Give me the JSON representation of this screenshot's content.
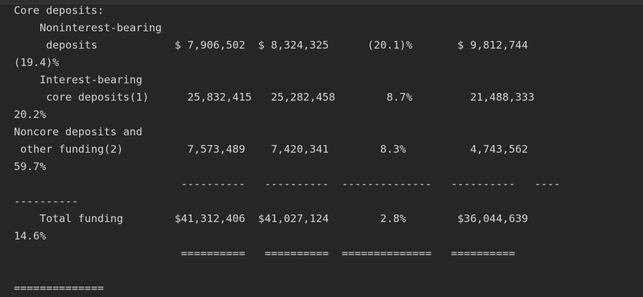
{
  "lines": [
    "Core deposits:",
    "    Noninterest-bearing",
    "     deposits            $ 7,906,502  $ 8,324,325      (20.1)%       $ 9,812,744",
    "(19.4)%",
    "    Interest-bearing",
    "     core deposits(1)      25,832,415   25,282,458        8.7%         21,488,333",
    "20.2%",
    "Noncore deposits and",
    " other funding(2)          7,573,489    7,420,341        8.3%          4,743,562",
    "59.7%",
    "                          ----------   ----------  --------------   ----------   ----",
    "----------",
    "    Total funding        $41,312,406  $41,027,124        2.8%        $36,044,639",
    "14.6%",
    "                          ==========   ==========  ==============   ==========",
    "",
    "=============="
  ]
}
